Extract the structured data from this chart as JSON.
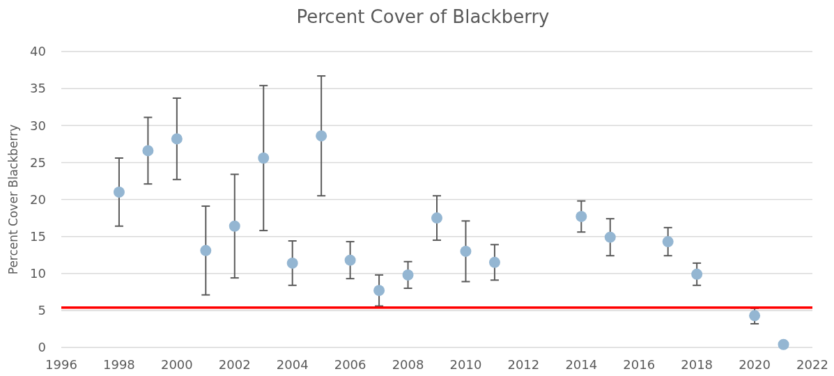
{
  "chart_data": {
    "type": "scatter",
    "title": "Percent Cover of Blackberry",
    "ylabel": "Percent Cover Blackberry",
    "x": [
      1998,
      1999,
      2000,
      2001,
      2002,
      2003,
      2004,
      2005,
      2006,
      2007,
      2008,
      2009,
      2010,
      2011,
      2014,
      2015,
      2017,
      2018,
      2020,
      2021
    ],
    "values": [
      21.0,
      26.6,
      28.2,
      13.1,
      16.4,
      25.6,
      11.4,
      28.6,
      11.8,
      7.7,
      9.8,
      17.5,
      13.0,
      11.5,
      17.7,
      14.9,
      14.3,
      9.9,
      4.3,
      0.4
    ],
    "errors": [
      [
        16.4,
        25.6
      ],
      [
        22.1,
        31.1
      ],
      [
        22.7,
        33.7
      ],
      [
        7.1,
        19.1
      ],
      [
        9.4,
        23.4
      ],
      [
        15.8,
        35.4
      ],
      [
        8.4,
        14.4
      ],
      [
        20.5,
        36.7
      ],
      [
        9.3,
        14.3
      ],
      [
        5.6,
        9.8
      ],
      [
        8.0,
        11.6
      ],
      [
        14.5,
        20.5
      ],
      [
        8.9,
        17.1
      ],
      [
        9.1,
        13.9
      ],
      [
        15.6,
        19.8
      ],
      [
        12.4,
        17.4
      ],
      [
        12.4,
        16.2
      ],
      [
        8.4,
        11.4
      ],
      [
        3.2,
        5.3
      ],
      null
    ],
    "color": "#94b6d2",
    "marker": "circle",
    "xlim": [
      1996,
      2022
    ],
    "xticks": [
      1996,
      1998,
      2000,
      2002,
      2004,
      2006,
      2008,
      2010,
      2012,
      2014,
      2016,
      2018,
      2020,
      2022
    ],
    "ylim": [
      0,
      40
    ],
    "yticks": [
      0,
      5,
      10,
      15,
      20,
      25,
      30,
      35,
      40
    ],
    "grid": "y",
    "ref_lines": [
      {
        "axis": "y",
        "value": 5.4,
        "color": "#ff0000"
      }
    ]
  }
}
